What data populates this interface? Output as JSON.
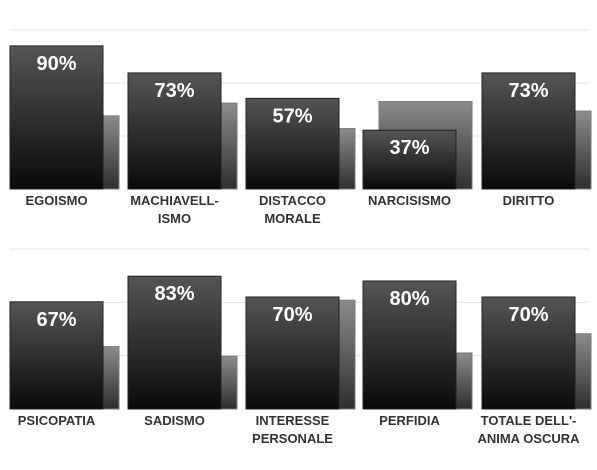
{
  "chart_data": [
    {
      "type": "bar",
      "categories": [
        "EGOISMO",
        "MACHIAVELL-\nISMO",
        "DISTACCO\nMORALE",
        "NARCISISMO",
        "DIRITTO"
      ],
      "series": [
        {
          "color": "#1a1a1a",
          "values": [
            90,
            73,
            57,
            37,
            73
          ],
          "value_labels": [
            "90%",
            "73%",
            "57%",
            "37%",
            "73%"
          ]
        },
        {
          "color": "#6e6e6e",
          "values": [
            46,
            54,
            38,
            55,
            49
          ]
        }
      ],
      "ylim": [
        0,
        100
      ],
      "grid": true
    },
    {
      "type": "bar",
      "categories": [
        "PSICOPATIA",
        "SADISMO",
        "INTERESSE\nPERSONALE",
        "PERFIDIA",
        "TOTALE DELL'-\nANIMA OSCURA"
      ],
      "series": [
        {
          "color": "#1a1a1a",
          "values": [
            67,
            83,
            70,
            80,
            70
          ],
          "value_labels": [
            "67%",
            "83%",
            "70%",
            "80%",
            "70%"
          ]
        },
        {
          "color": "#6e6e6e",
          "values": [
            39,
            33,
            68,
            35,
            47
          ]
        }
      ],
      "ylim": [
        0,
        100
      ],
      "grid": true
    }
  ]
}
